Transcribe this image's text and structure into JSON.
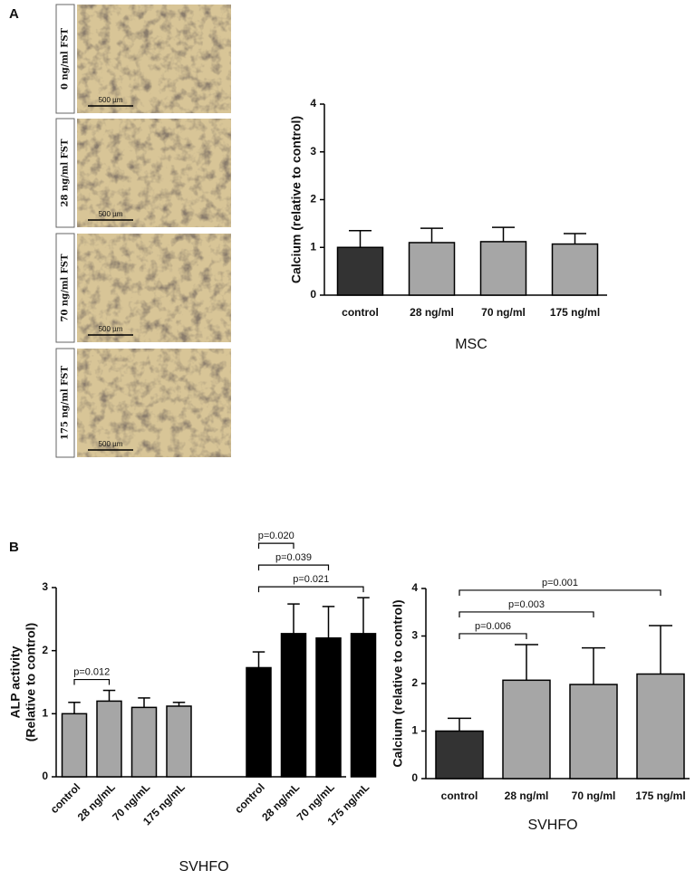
{
  "figure": {
    "panel_labels": [
      "A",
      "B"
    ],
    "images": [
      {
        "label": "0 ng/ml FST",
        "scale_bar": "500 µm"
      },
      {
        "label": "28 ng/ml FST",
        "scale_bar": "500 µm"
      },
      {
        "label": "70 ng/ml FST",
        "scale_bar": "500 µm"
      },
      {
        "label": "175 ng/ml FST",
        "scale_bar": "500 µm"
      }
    ]
  },
  "chart_data": [
    {
      "type": "bar",
      "ylabel": "Calcium (relative to control)",
      "xlabel": "MSC",
      "categories": [
        "control",
        "28 ng/ml",
        "70 ng/ml",
        "175 ng/ml"
      ],
      "values": [
        1.0,
        1.1,
        1.12,
        1.07
      ],
      "errors": [
        0.35,
        0.3,
        0.3,
        0.22
      ],
      "colors": [
        "#333333",
        "#a6a6a6",
        "#a6a6a6",
        "#a6a6a6"
      ],
      "ylim": [
        0,
        4
      ],
      "yticks": [
        0,
        1,
        2,
        3,
        4
      ]
    },
    {
      "type": "grouped_bar",
      "ylabel": [
        "ALP activity",
        "(Relative to control)"
      ],
      "xlabel": "SVHFO",
      "ylim": [
        0,
        3
      ],
      "yticks": [
        0,
        1,
        2,
        3
      ],
      "groups": [
        {
          "color": "#a6a6a6",
          "categories": [
            "control",
            "28 ng/mL",
            "70 ng/mL",
            "175 ng/mL"
          ],
          "values": [
            1.0,
            1.2,
            1.1,
            1.12
          ],
          "errors": [
            0.18,
            0.17,
            0.15,
            0.06
          ],
          "annotations": [
            {
              "text": "p=0.012",
              "from": 0,
              "to": 1
            }
          ]
        },
        {
          "color": "#000000",
          "categories": [
            "control",
            "28 ng/mL",
            "70 ng/mL",
            "175 ng/mL"
          ],
          "values": [
            1.73,
            2.27,
            2.2,
            2.27
          ],
          "errors": [
            0.25,
            0.47,
            0.5,
            0.57
          ],
          "annotations": [
            {
              "text": "p=0.020",
              "from": 0,
              "to": 1
            },
            {
              "text": "p=0.039",
              "from": 0,
              "to": 2
            },
            {
              "text": "p=0.021",
              "from": 0,
              "to": 3
            }
          ]
        }
      ]
    },
    {
      "type": "bar",
      "ylabel": "Calcium (relative to control)",
      "xlabel": "SVHFO",
      "categories": [
        "control",
        "28 ng/ml",
        "70 ng/ml",
        "175 ng/ml"
      ],
      "values": [
        1.0,
        2.07,
        1.98,
        2.2
      ],
      "errors": [
        0.27,
        0.75,
        0.77,
        1.02
      ],
      "colors": [
        "#333333",
        "#a6a6a6",
        "#a6a6a6",
        "#a6a6a6"
      ],
      "ylim": [
        0,
        4
      ],
      "yticks": [
        0,
        1,
        2,
        3,
        4
      ],
      "annotations": [
        {
          "text": "p=0.001",
          "from": 0,
          "to": 3
        },
        {
          "text": "p=0.003",
          "from": 0,
          "to": 2
        },
        {
          "text": "p=0.006",
          "from": 0,
          "to": 1
        }
      ]
    }
  ]
}
